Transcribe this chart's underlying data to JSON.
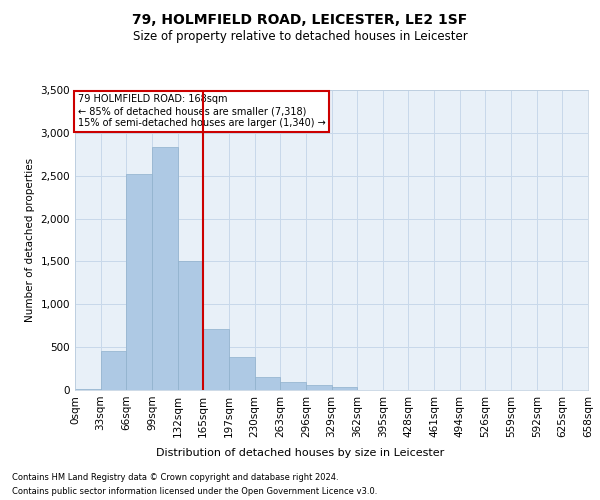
{
  "title_line1": "79, HOLMFIELD ROAD, LEICESTER, LE2 1SF",
  "title_line2": "Size of property relative to detached houses in Leicester",
  "xlabel": "Distribution of detached houses by size in Leicester",
  "ylabel": "Number of detached properties",
  "footnote1": "Contains HM Land Registry data © Crown copyright and database right 2024.",
  "footnote2": "Contains public sector information licensed under the Open Government Licence v3.0.",
  "annotation_line1": "79 HOLMFIELD ROAD: 168sqm",
  "annotation_line2": "← 85% of detached houses are smaller (7,318)",
  "annotation_line3": "15% of semi-detached houses are larger (1,340) →",
  "bar_color": "#aec9e4",
  "bar_edge_color": "#8fb0cc",
  "grid_color": "#c8d8ea",
  "vline_color": "#cc0000",
  "background_color": "#e8f0f8",
  "bin_edges": [
    0,
    33,
    66,
    99,
    132,
    165,
    198,
    231,
    264,
    297,
    330,
    363,
    396,
    429,
    462,
    495,
    528,
    561,
    594,
    627,
    660
  ],
  "bin_counts": [
    10,
    450,
    2520,
    2830,
    1510,
    710,
    390,
    150,
    90,
    60,
    40,
    0,
    0,
    0,
    0,
    0,
    0,
    0,
    0,
    0
  ],
  "vline_x": 165,
  "ylim": [
    0,
    3500
  ],
  "yticks": [
    0,
    500,
    1000,
    1500,
    2000,
    2500,
    3000,
    3500
  ],
  "tick_labels": [
    "0sqm",
    "33sqm",
    "66sqm",
    "99sqm",
    "132sqm",
    "165sqm",
    "197sqm",
    "230sqm",
    "263sqm",
    "296sqm",
    "329sqm",
    "362sqm",
    "395sqm",
    "428sqm",
    "461sqm",
    "494sqm",
    "526sqm",
    "559sqm",
    "592sqm",
    "625sqm",
    "658sqm"
  ],
  "figsize": [
    6.0,
    5.0
  ],
  "dpi": 100
}
